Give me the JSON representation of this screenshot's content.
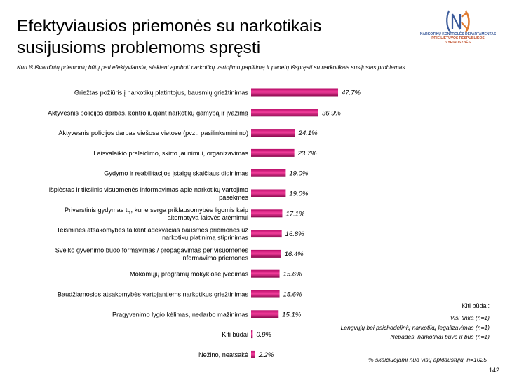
{
  "page": {
    "title_line1": "Efektyviausios priemonės su narkotikais",
    "title_line2": "susijusioms problemoms spręsti",
    "question": "Kuri iš išvardintų priemonių būtų pati efektyviausia, siekiant apriboti narkotikų vartojimo paplitimą ir padėtų išspręsti su narkotikais susijusias problemas",
    "logo_line1": "NARKOTIKŲ KONTROLĖS DEPARTAMENTAS",
    "logo_line2": "PRIE LIETUVOS RESPUBLIKOS VYRIAUSYBĖS",
    "notes_title": "Kiti būdai:",
    "notes": [
      "Visi tinka (n=1)",
      "Lengvųjų bei psichodelinių narkotikų legalizavimas (n=1)",
      "Nepadės, narkotikai buvo ir bus (n=1)"
    ],
    "footnote": "% skaičiuojami nuo visų apklaustųjų, n=1025",
    "page_number": "142",
    "colors": {
      "bar": "#e0117f",
      "bar_dark": "#8c0a4e",
      "logo_accent": "#e07b2f"
    }
  },
  "chart_data": {
    "type": "bar",
    "orientation": "horizontal",
    "value_suffix": "%",
    "xlim": [
      0,
      50
    ],
    "grid": false,
    "categories": [
      [
        "Griežtas požiūris į narkotikų platintojus, bausmių griežtinimas"
      ],
      [
        "Aktyvesnis policijos darbas, kontroliuojant narkotikų gamybą ir įvažimą"
      ],
      [
        "Aktyvesnis policijos darbas viešose vietose (pvz.: pasilinksminimo)"
      ],
      [
        "Laisvalaikio praleidimo, skirto jaunimui, organizavimas"
      ],
      [
        "Gydymo ir reabilitacijos įstaigų skaičiaus didinimas"
      ],
      [
        "Išplėstas ir tikslinis visuomenės informavimas apie narkotikų vartojimo",
        "pasekmes"
      ],
      [
        "Priverstinis gydymas tų, kurie serga priklausomybės ligomis kaip",
        "alternatyva laisvės atėmimui"
      ],
      [
        "Teisminės atsakomybės taikant adekvačias bausmės priemones už",
        "narkotikų platinimą stiprinimas"
      ],
      [
        "Sveiko gyvenimo būdo formavimas / propagavimas per visuomenės",
        "informavimo priemones"
      ],
      [
        "Mokomųjų programų mokyklose įvedimas"
      ],
      [
        "Baudžiamosios atsakomybės vartojantiems narkotikus griežtinimas"
      ],
      [
        "Pragyvenimo lygio kėlimas, nedarbo mažinimas"
      ],
      [
        "Kiti būdai"
      ],
      [
        "Nežino, neatsakė"
      ]
    ],
    "values": [
      47.7,
      36.9,
      24.1,
      23.7,
      19.0,
      19.0,
      17.1,
      16.8,
      16.4,
      15.6,
      15.6,
      15.1,
      0.9,
      2.2
    ],
    "labels": [
      "47.7%",
      "36.9%",
      "24.1%",
      "23.7%",
      "19.0%",
      "19.0%",
      "17.1%",
      "16.8%",
      "16.4%",
      "15.6%",
      "15.6%",
      "15.1%",
      "0.9%",
      "2.2%"
    ]
  }
}
